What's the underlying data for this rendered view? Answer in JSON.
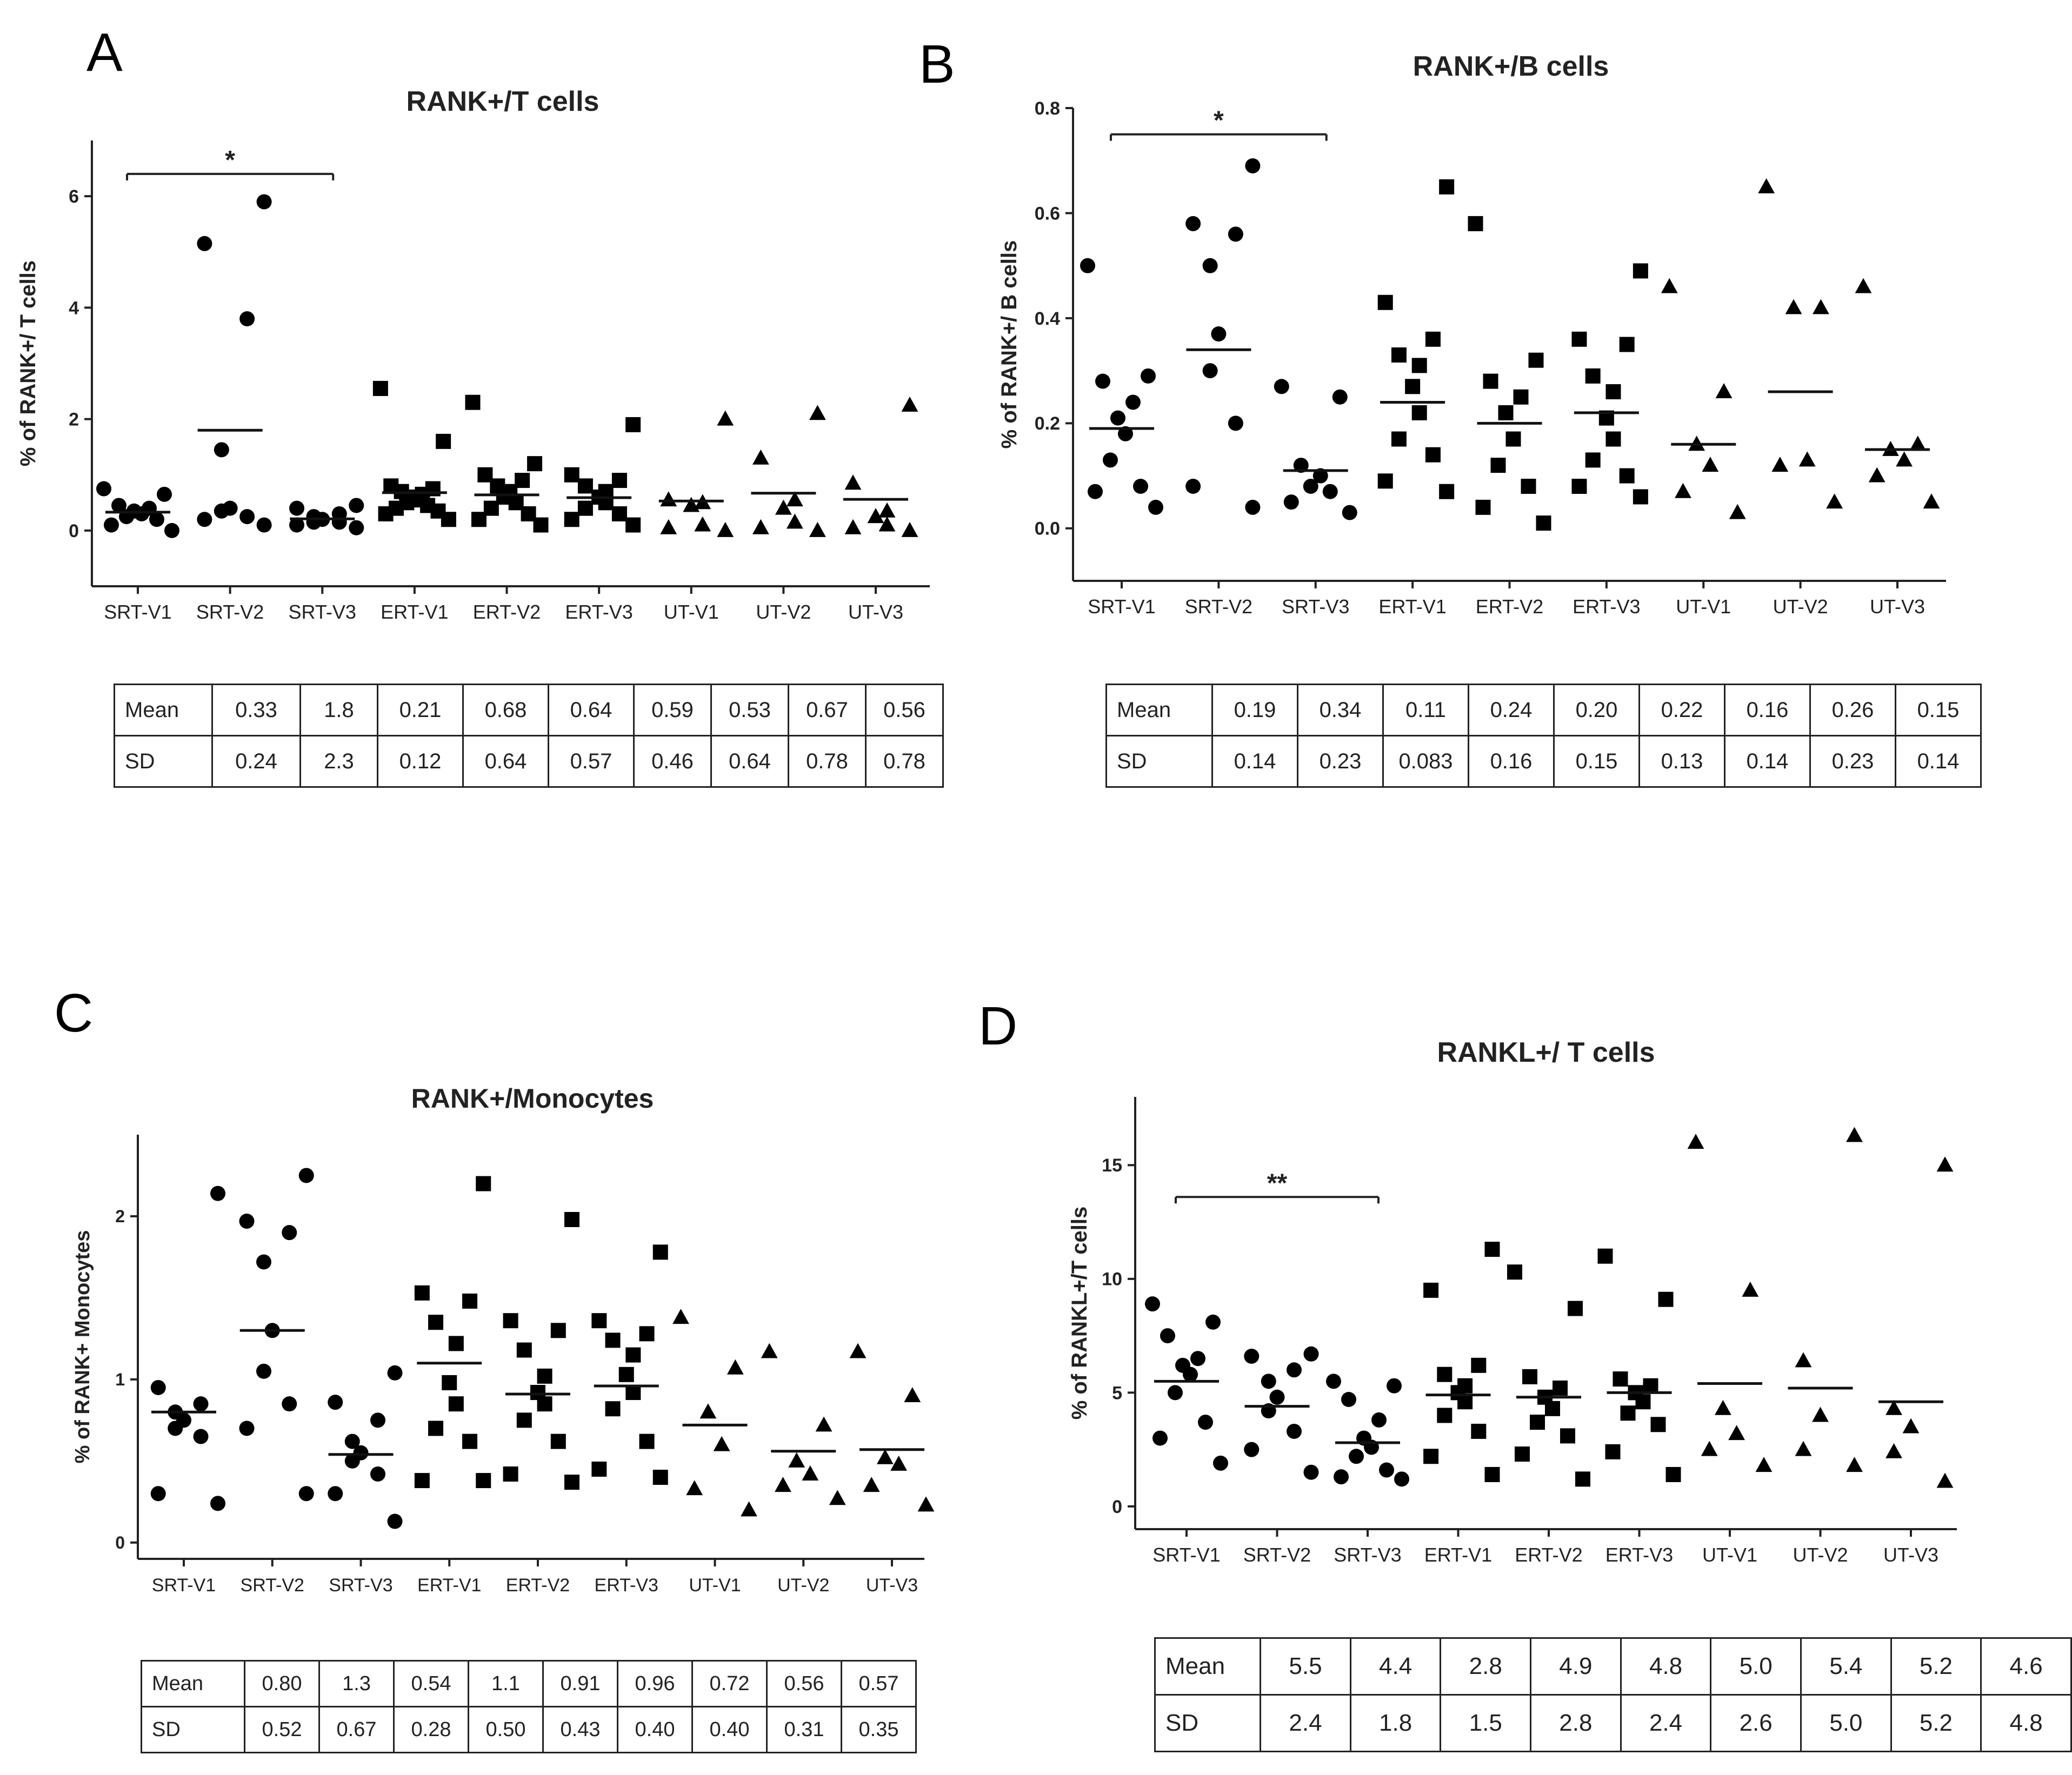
{
  "figure": {
    "panel_labels": [
      "A",
      "B",
      "C",
      "D"
    ]
  },
  "chart_data": [
    {
      "type": "scatter",
      "panel": "A",
      "title": "RANK+/T cells",
      "ylabel": "% of RANK+/ T cells",
      "xlabel": "",
      "ylim": [
        -1,
        7
      ],
      "yticks": [
        0,
        2,
        4,
        6
      ],
      "categories": [
        "SRT-V1",
        "SRT-V2",
        "SRT-V3",
        "ERT-V1",
        "ERT-V2",
        "ERT-V3",
        "UT-V1",
        "UT-V2",
        "UT-V3"
      ],
      "markers": [
        "circle",
        "circle",
        "circle",
        "square",
        "square",
        "square",
        "triangle",
        "triangle",
        "triangle"
      ],
      "points": [
        [
          0.0,
          0.1,
          0.2,
          0.25,
          0.3,
          0.35,
          0.4,
          0.45,
          0.65,
          0.75
        ],
        [
          0.1,
          0.2,
          0.25,
          0.35,
          0.4,
          1.45,
          3.8,
          5.15,
          5.9
        ],
        [
          0.05,
          0.1,
          0.15,
          0.15,
          0.2,
          0.25,
          0.3,
          0.4,
          0.45
        ],
        [
          0.2,
          0.3,
          0.35,
          0.4,
          0.45,
          0.5,
          0.55,
          0.6,
          0.65,
          0.7,
          0.75,
          0.8,
          1.6,
          2.55
        ],
        [
          0.1,
          0.2,
          0.3,
          0.4,
          0.5,
          0.6,
          0.7,
          0.8,
          0.9,
          1.0,
          1.2,
          2.3
        ],
        [
          0.1,
          0.2,
          0.3,
          0.4,
          0.5,
          0.6,
          0.7,
          0.8,
          0.9,
          1.0,
          1.9
        ],
        [
          0.0,
          0.05,
          0.1,
          0.45,
          0.5,
          0.55,
          2.0
        ],
        [
          0.0,
          0.05,
          0.15,
          0.4,
          0.55,
          1.3,
          2.1
        ],
        [
          0.0,
          0.05,
          0.1,
          0.25,
          0.35,
          0.85,
          2.25
        ]
      ],
      "means": [
        0.33,
        1.8,
        0.21,
        0.68,
        0.64,
        0.59,
        0.53,
        0.67,
        0.56
      ],
      "significance": [
        {
          "from": 0,
          "to": 2,
          "label": "*",
          "y": 6.4
        }
      ],
      "table": {
        "row_labels": [
          "Mean",
          "SD"
        ],
        "mean": [
          "0.33",
          "1.8",
          "0.21",
          "0.68",
          "0.64",
          "0.59",
          "0.53",
          "0.67",
          "0.56"
        ],
        "sd": [
          "0.24",
          "2.3",
          "0.12",
          "0.64",
          "0.57",
          "0.46",
          "0.64",
          "0.78",
          "0.78"
        ]
      }
    },
    {
      "type": "scatter",
      "panel": "B",
      "title": "RANK+/B cells",
      "ylabel": "% of RANK+/ B cells",
      "xlabel": "",
      "ylim": [
        -0.1,
        0.8
      ],
      "yticks": [
        0.0,
        0.2,
        0.4,
        0.6,
        0.8
      ],
      "yticklabels": [
        "0.0",
        "0.2",
        "0.4",
        "0.6",
        "0.8"
      ],
      "categories": [
        "SRT-V1",
        "SRT-V2",
        "SRT-V3",
        "ERT-V1",
        "ERT-V2",
        "ERT-V3",
        "UT-V1",
        "UT-V2",
        "UT-V3"
      ],
      "markers": [
        "circle",
        "circle",
        "circle",
        "square",
        "square",
        "square",
        "triangle",
        "triangle",
        "triangle"
      ],
      "points": [
        [
          0.04,
          0.07,
          0.08,
          0.13,
          0.18,
          0.21,
          0.24,
          0.28,
          0.29,
          0.5
        ],
        [
          0.04,
          0.08,
          0.2,
          0.3,
          0.37,
          0.5,
          0.56,
          0.58,
          0.69
        ],
        [
          0.03,
          0.05,
          0.07,
          0.08,
          0.1,
          0.12,
          0.25,
          0.27
        ],
        [
          0.07,
          0.09,
          0.14,
          0.17,
          0.22,
          0.27,
          0.31,
          0.33,
          0.36,
          0.43,
          0.65
        ],
        [
          0.01,
          0.04,
          0.08,
          0.12,
          0.17,
          0.22,
          0.25,
          0.28,
          0.32,
          0.58
        ],
        [
          0.06,
          0.08,
          0.1,
          0.13,
          0.17,
          0.21,
          0.26,
          0.29,
          0.35,
          0.36,
          0.49
        ],
        [
          0.03,
          0.07,
          0.12,
          0.16,
          0.26,
          0.46
        ],
        [
          0.05,
          0.12,
          0.13,
          0.42,
          0.42,
          0.65
        ],
        [
          0.05,
          0.1,
          0.13,
          0.15,
          0.16,
          0.46
        ]
      ],
      "means": [
        0.19,
        0.34,
        0.11,
        0.24,
        0.2,
        0.22,
        0.16,
        0.26,
        0.15
      ],
      "significance": [
        {
          "from": 0,
          "to": 2,
          "label": "*",
          "y": 0.75
        }
      ],
      "table": {
        "row_labels": [
          "Mean",
          "SD"
        ],
        "mean": [
          "0.19",
          "0.34",
          "0.11",
          "0.24",
          "0.20",
          "0.22",
          "0.16",
          "0.26",
          "0.15"
        ],
        "sd": [
          "0.14",
          "0.23",
          "0.083",
          "0.16",
          "0.15",
          "0.13",
          "0.14",
          "0.23",
          "0.14"
        ]
      }
    },
    {
      "type": "scatter",
      "panel": "C",
      "title": "RANK+/Monocytes",
      "ylabel": "% of RANK+ Monocytes",
      "xlabel": "",
      "ylim": [
        -0.1,
        2.5
      ],
      "yticks": [
        0,
        1,
        2
      ],
      "categories": [
        "SRT-V1",
        "SRT-V2",
        "SRT-V3",
        "ERT-V1",
        "ERT-V2",
        "ERT-V3",
        "UT-V1",
        "UT-V2",
        "UT-V3"
      ],
      "markers": [
        "circle",
        "circle",
        "circle",
        "square",
        "square",
        "square",
        "triangle",
        "triangle",
        "triangle"
      ],
      "points": [
        [
          0.24,
          0.3,
          0.65,
          0.7,
          0.75,
          0.8,
          0.85,
          0.95,
          2.14
        ],
        [
          0.3,
          0.7,
          0.85,
          1.05,
          1.3,
          1.72,
          1.9,
          1.97,
          2.25
        ],
        [
          0.13,
          0.3,
          0.42,
          0.5,
          0.55,
          0.62,
          0.75,
          0.86,
          1.04
        ],
        [
          0.38,
          0.38,
          0.62,
          0.7,
          0.85,
          0.98,
          1.22,
          1.35,
          1.48,
          1.53,
          2.2
        ],
        [
          0.37,
          0.42,
          0.62,
          0.75,
          0.85,
          0.92,
          1.02,
          1.18,
          1.3,
          1.36,
          1.98
        ],
        [
          0.4,
          0.45,
          0.62,
          0.82,
          0.92,
          1.03,
          1.15,
          1.24,
          1.28,
          1.36,
          1.78
        ],
        [
          0.2,
          0.33,
          0.6,
          0.8,
          1.07,
          1.38
        ],
        [
          0.27,
          0.35,
          0.42,
          0.5,
          0.72,
          1.17
        ],
        [
          0.23,
          0.35,
          0.48,
          0.52,
          0.9,
          1.17
        ]
      ],
      "means": [
        0.8,
        1.3,
        0.54,
        1.1,
        0.91,
        0.96,
        0.72,
        0.56,
        0.57
      ],
      "significance": [],
      "table": {
        "row_labels": [
          "Mean",
          "SD"
        ],
        "mean": [
          "0.80",
          "1.3",
          "0.54",
          "1.1",
          "0.91",
          "0.96",
          "0.72",
          "0.56",
          "0.57"
        ],
        "sd": [
          "0.52",
          "0.67",
          "0.28",
          "0.50",
          "0.43",
          "0.40",
          "0.40",
          "0.31",
          "0.35"
        ]
      }
    },
    {
      "type": "scatter",
      "panel": "D",
      "title": "RANKL+/ T cells",
      "ylabel": "% of RANKL+/T cells",
      "xlabel": "",
      "ylim": [
        -1,
        18
      ],
      "yticks": [
        0,
        5,
        10,
        15
      ],
      "categories": [
        "SRT-V1",
        "SRT-V2",
        "SRT-V3",
        "ERT-V1",
        "ERT-V2",
        "ERT-V3",
        "UT-V1",
        "UT-V2",
        "UT-V3"
      ],
      "markers": [
        "circle",
        "circle",
        "circle",
        "square",
        "square",
        "square",
        "triangle",
        "triangle",
        "triangle"
      ],
      "points": [
        [
          1.9,
          3.0,
          3.7,
          5.0,
          5.8,
          6.2,
          6.5,
          7.5,
          8.1,
          8.9
        ],
        [
          1.5,
          2.5,
          3.3,
          4.2,
          4.8,
          5.5,
          6.0,
          6.6,
          6.7
        ],
        [
          1.2,
          1.3,
          1.6,
          2.2,
          2.6,
          3.0,
          3.8,
          4.7,
          5.3,
          5.5
        ],
        [
          1.4,
          2.2,
          3.3,
          4.0,
          4.6,
          5.0,
          5.3,
          5.8,
          6.2,
          9.5,
          11.3
        ],
        [
          1.2,
          2.3,
          3.1,
          3.7,
          4.3,
          4.8,
          5.2,
          5.7,
          8.7,
          10.3
        ],
        [
          1.4,
          2.4,
          3.6,
          4.1,
          4.6,
          5.0,
          5.3,
          5.6,
          9.1,
          11.0
        ],
        [
          1.8,
          2.5,
          3.2,
          4.3,
          9.5,
          16.0
        ],
        [
          1.8,
          2.5,
          4.0,
          6.4,
          16.3
        ],
        [
          1.1,
          2.4,
          3.5,
          4.3,
          15.0
        ]
      ],
      "means": [
        5.5,
        4.4,
        2.8,
        4.9,
        4.8,
        5.0,
        5.4,
        5.2,
        4.6
      ],
      "significance": [
        {
          "from": 0,
          "to": 2,
          "label": "**",
          "y": 13.6
        }
      ],
      "table": {
        "row_labels": [
          "Mean",
          "SD"
        ],
        "mean": [
          "5.5",
          "4.4",
          "2.8",
          "4.9",
          "4.8",
          "5.0",
          "5.4",
          "5.2",
          "4.6"
        ],
        "sd": [
          "2.4",
          "1.8",
          "1.5",
          "2.8",
          "2.4",
          "2.6",
          "5.0",
          "5.2",
          "4.8"
        ]
      }
    }
  ]
}
